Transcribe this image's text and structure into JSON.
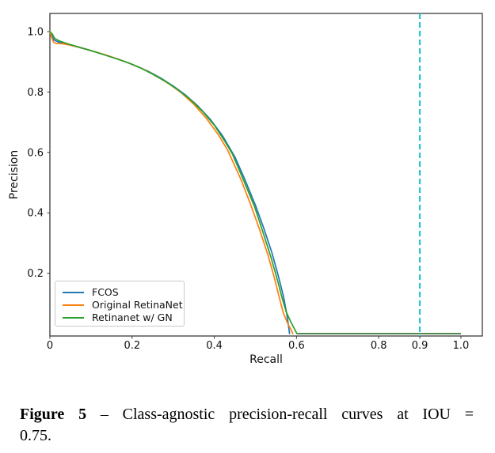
{
  "caption": {
    "figure_label": "Figure 5",
    "separator": "–",
    "line1_rest": "Class-agnostic precision-recall curves at IOU =",
    "line2": "0.75."
  },
  "chart_data": {
    "type": "line",
    "title": "",
    "xlabel": "Recall",
    "ylabel": "Precision",
    "xlim": [
      0,
      1.052
    ],
    "ylim": [
      -0.008,
      1.06
    ],
    "grid": false,
    "legend_position": "lower left",
    "xticks": {
      "values": [
        0,
        0.2,
        0.4,
        0.6,
        0.8,
        0.9,
        1.0
      ],
      "labels": [
        "0",
        "0.2",
        "0.4",
        "0.6",
        "0.8",
        "0.9",
        "1.0"
      ]
    },
    "yticks": {
      "values": [
        0.2,
        0.4,
        0.6,
        0.8,
        1.0
      ],
      "labels": [
        "0.2",
        "0.4",
        "0.6",
        "0.8",
        "1.0"
      ]
    },
    "series": [
      {
        "name": "FCOS",
        "color": "#1f77b4",
        "points": [
          [
            0,
            1.0
          ],
          [
            0.005,
            0.985
          ],
          [
            0.01,
            0.972
          ],
          [
            0.02,
            0.966
          ],
          [
            0.04,
            0.959
          ],
          [
            0.06,
            0.952
          ],
          [
            0.09,
            0.941
          ],
          [
            0.12,
            0.929
          ],
          [
            0.15,
            0.916
          ],
          [
            0.18,
            0.902
          ],
          [
            0.21,
            0.886
          ],
          [
            0.24,
            0.868
          ],
          [
            0.27,
            0.846
          ],
          [
            0.3,
            0.82
          ],
          [
            0.33,
            0.79
          ],
          [
            0.36,
            0.754
          ],
          [
            0.39,
            0.71
          ],
          [
            0.42,
            0.655
          ],
          [
            0.45,
            0.585
          ],
          [
            0.475,
            0.508
          ],
          [
            0.5,
            0.425
          ],
          [
            0.52,
            0.35
          ],
          [
            0.54,
            0.268
          ],
          [
            0.555,
            0.195
          ],
          [
            0.568,
            0.125
          ],
          [
            0.576,
            0.068
          ],
          [
            0.581,
            0.022
          ],
          [
            0.583,
            0.0
          ]
        ]
      },
      {
        "name": "Original RetinaNet",
        "color": "#ff7f0e",
        "points": [
          [
            0,
            1.0
          ],
          [
            0.004,
            0.982
          ],
          [
            0.009,
            0.965
          ],
          [
            0.015,
            0.961
          ],
          [
            0.03,
            0.96
          ],
          [
            0.05,
            0.955
          ],
          [
            0.08,
            0.945
          ],
          [
            0.11,
            0.933
          ],
          [
            0.14,
            0.921
          ],
          [
            0.17,
            0.907
          ],
          [
            0.2,
            0.892
          ],
          [
            0.23,
            0.874
          ],
          [
            0.26,
            0.852
          ],
          [
            0.29,
            0.827
          ],
          [
            0.32,
            0.797
          ],
          [
            0.35,
            0.76
          ],
          [
            0.38,
            0.714
          ],
          [
            0.41,
            0.658
          ],
          [
            0.433,
            0.606
          ],
          [
            0.465,
            0.51
          ],
          [
            0.489,
            0.425
          ],
          [
            0.51,
            0.345
          ],
          [
            0.53,
            0.262
          ],
          [
            0.545,
            0.19
          ],
          [
            0.558,
            0.12
          ],
          [
            0.568,
            0.068
          ],
          [
            0.578,
            0.035
          ],
          [
            0.586,
            0.015
          ],
          [
            0.591,
            0.0
          ]
        ]
      },
      {
        "name": "Retinanet w/ GN",
        "color": "#2ca02c",
        "points": [
          [
            0,
            1.0
          ],
          [
            0.006,
            0.992
          ],
          [
            0.012,
            0.977
          ],
          [
            0.025,
            0.968
          ],
          [
            0.045,
            0.959
          ],
          [
            0.07,
            0.949
          ],
          [
            0.1,
            0.937
          ],
          [
            0.13,
            0.924
          ],
          [
            0.16,
            0.911
          ],
          [
            0.19,
            0.897
          ],
          [
            0.22,
            0.88
          ],
          [
            0.25,
            0.859
          ],
          [
            0.28,
            0.836
          ],
          [
            0.31,
            0.809
          ],
          [
            0.34,
            0.777
          ],
          [
            0.37,
            0.738
          ],
          [
            0.4,
            0.69
          ],
          [
            0.425,
            0.638
          ],
          [
            0.444,
            0.595
          ],
          [
            0.47,
            0.512
          ],
          [
            0.498,
            0.42
          ],
          [
            0.518,
            0.338
          ],
          [
            0.538,
            0.252
          ],
          [
            0.553,
            0.18
          ],
          [
            0.565,
            0.118
          ],
          [
            0.575,
            0.072
          ],
          [
            0.585,
            0.042
          ],
          [
            0.594,
            0.018
          ],
          [
            0.601,
            0.0
          ]
        ]
      }
    ],
    "zero_segment": {
      "from_x": 0.601,
      "to_x": 1.0,
      "y": 0.0,
      "color": "#166016"
    },
    "vline": {
      "x": 0.9,
      "style": "dashed",
      "color": "#16c2cd"
    },
    "colors": {
      "spine": "#3a3a3a",
      "text": "#111111"
    }
  }
}
